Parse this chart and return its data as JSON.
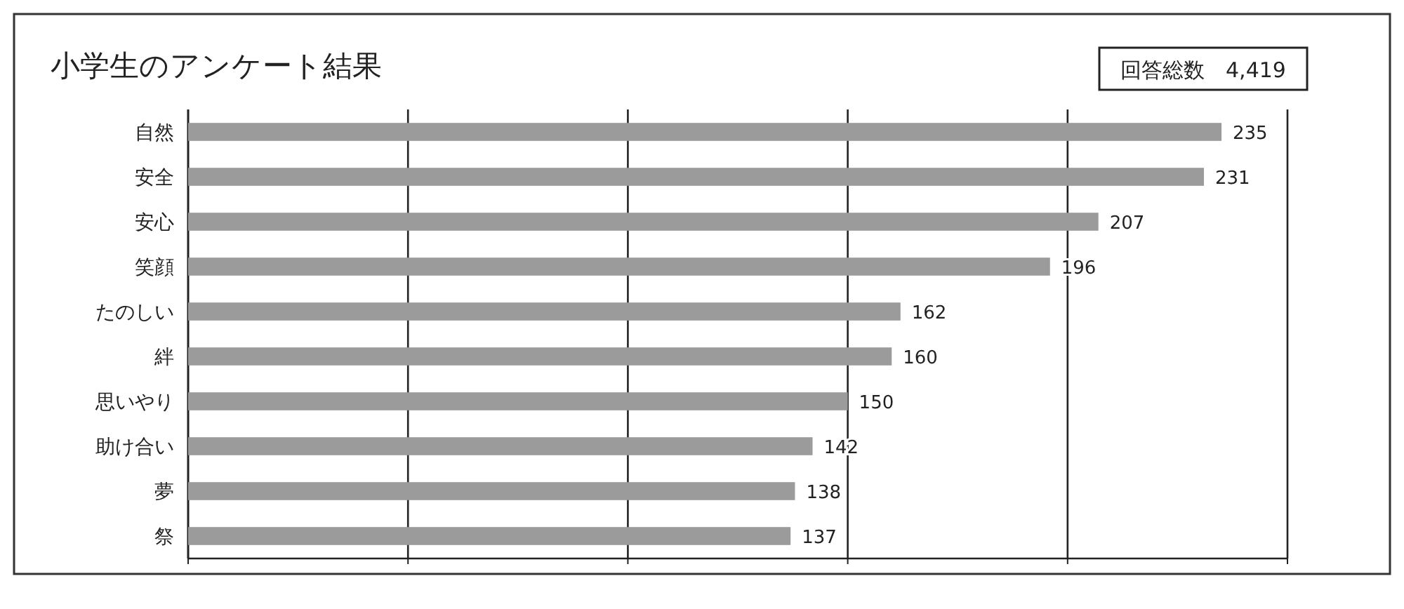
{
  "chart_data": {
    "type": "bar",
    "orientation": "horizontal",
    "title": "小学生のアンケート結果",
    "annotations": [
      "回答総数　4,419"
    ],
    "categories": [
      "自然",
      "安全",
      "安心",
      "笑顔",
      "たのしい",
      "絆",
      "思いやり",
      "助け合い",
      "夢",
      "祭"
    ],
    "values": [
      235,
      231,
      207,
      196,
      162,
      160,
      150,
      142,
      138,
      137
    ],
    "color": "#9b9b9b",
    "data_labels": true,
    "xlim": [
      0,
      250
    ],
    "xticks": [
      {
        "value": 0,
        "label": null
      },
      {
        "value": 50,
        "label": null
      },
      {
        "value": 100,
        "label": null
      },
      {
        "value": 150,
        "label": null
      },
      {
        "value": 200,
        "label": null
      },
      {
        "value": 250,
        "label": null
      }
    ],
    "grid": "x",
    "tick_labels": "y"
  }
}
